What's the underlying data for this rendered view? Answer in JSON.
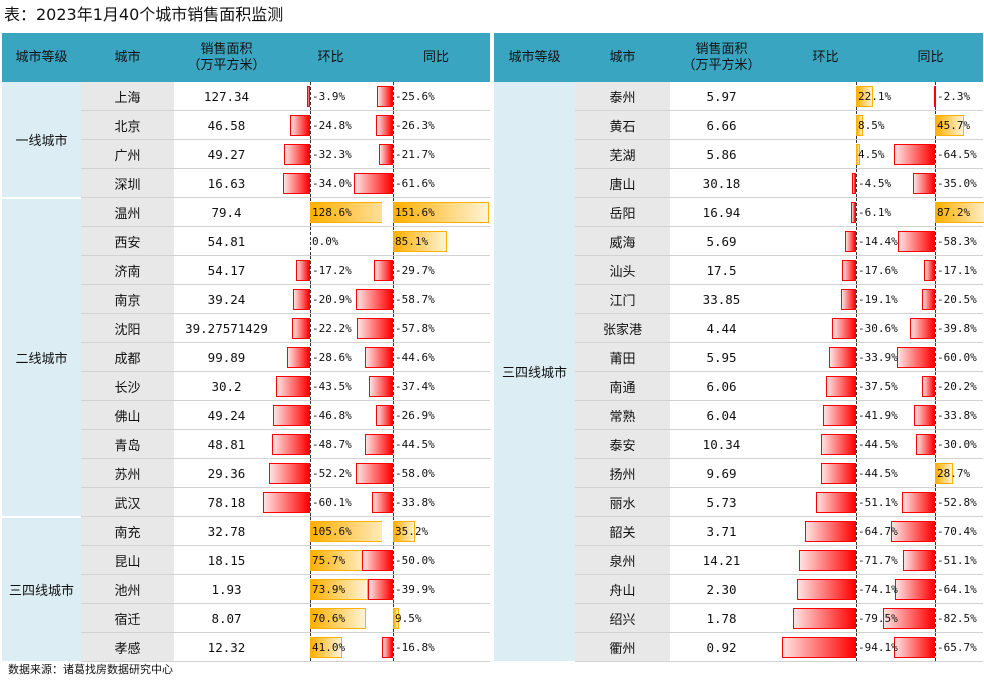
{
  "title": "表：2023年1月40个城市销售面积监测",
  "source": "数据来源：诸葛找房数据研究中心",
  "headers": {
    "tier": "城市等级",
    "city": "城市",
    "area": "销售面积\n（万平方米）",
    "mom": "环比",
    "yoy": "同比"
  },
  "tiers": {
    "t1": "一线城市",
    "t2": "二线城市",
    "t34": "三四线城市"
  },
  "colors": {
    "header": "#3aa5c0",
    "tier_cell": "#dcedf3",
    "city_cell": "#e8e8e8",
    "negative": "#ff0000",
    "positive": "#ffb000"
  },
  "chart_data": {
    "type": "table",
    "columns": [
      "城市等级",
      "城市",
      "销售面积（万平方米）",
      "环比",
      "同比"
    ],
    "left_table": [
      {
        "tier": "一线城市",
        "city": "上海",
        "area": "127.34",
        "mom": "-3.9%",
        "yoy": "-25.6%"
      },
      {
        "tier": "一线城市",
        "city": "北京",
        "area": "46.58",
        "mom": "-24.8%",
        "yoy": "-26.3%"
      },
      {
        "tier": "一线城市",
        "city": "广州",
        "area": "49.27",
        "mom": "-32.3%",
        "yoy": "-21.7%"
      },
      {
        "tier": "一线城市",
        "city": "深圳",
        "area": "16.63",
        "mom": "-34.0%",
        "yoy": "-61.6%"
      },
      {
        "tier": "二线城市",
        "city": "温州",
        "area": "79.4",
        "mom": "128.6%",
        "yoy": "151.6%"
      },
      {
        "tier": "二线城市",
        "city": "西安",
        "area": "54.81",
        "mom": "0.0%",
        "yoy": "85.1%"
      },
      {
        "tier": "二线城市",
        "city": "济南",
        "area": "54.17",
        "mom": "-17.2%",
        "yoy": "-29.7%"
      },
      {
        "tier": "二线城市",
        "city": "南京",
        "area": "39.24",
        "mom": "-20.9%",
        "yoy": "-58.7%"
      },
      {
        "tier": "二线城市",
        "city": "沈阳",
        "area": "39.27571429",
        "mom": "-22.2%",
        "yoy": "-57.8%"
      },
      {
        "tier": "二线城市",
        "city": "成都",
        "area": "99.89",
        "mom": "-28.6%",
        "yoy": "-44.6%"
      },
      {
        "tier": "二线城市",
        "city": "长沙",
        "area": "30.2",
        "mom": "-43.5%",
        "yoy": "-37.4%"
      },
      {
        "tier": "二线城市",
        "city": "佛山",
        "area": "49.24",
        "mom": "-46.8%",
        "yoy": "-26.9%"
      },
      {
        "tier": "二线城市",
        "city": "青岛",
        "area": "48.81",
        "mom": "-48.7%",
        "yoy": "-44.5%"
      },
      {
        "tier": "二线城市",
        "city": "苏州",
        "area": "29.36",
        "mom": "-52.2%",
        "yoy": "-58.0%"
      },
      {
        "tier": "二线城市",
        "city": "武汉",
        "area": "78.18",
        "mom": "-60.1%",
        "yoy": "-33.8%"
      },
      {
        "tier": "三四线城市",
        "city": "南充",
        "area": "32.78",
        "mom": "105.6%",
        "yoy": "35.2%"
      },
      {
        "tier": "三四线城市",
        "city": "昆山",
        "area": "18.15",
        "mom": "75.7%",
        "yoy": "-50.0%"
      },
      {
        "tier": "三四线城市",
        "city": "池州",
        "area": "1.93",
        "mom": "73.9%",
        "yoy": "-39.9%"
      },
      {
        "tier": "三四线城市",
        "city": "宿迁",
        "area": "8.07",
        "mom": "70.6%",
        "yoy": "9.5%"
      },
      {
        "tier": "三四线城市",
        "city": "孝感",
        "area": "12.32",
        "mom": "41.0%",
        "yoy": "-16.8%"
      }
    ],
    "right_table": [
      {
        "tier": "三四线城市",
        "city": "泰州",
        "area": "5.97",
        "mom": "22.1%",
        "yoy": "-2.3%"
      },
      {
        "tier": "三四线城市",
        "city": "黄石",
        "area": "6.66",
        "mom": "8.5%",
        "yoy": "45.7%"
      },
      {
        "tier": "三四线城市",
        "city": "芜湖",
        "area": "5.86",
        "mom": "4.5%",
        "yoy": "-64.5%"
      },
      {
        "tier": "三四线城市",
        "city": "唐山",
        "area": "30.18",
        "mom": "-4.5%",
        "yoy": "-35.0%"
      },
      {
        "tier": "三四线城市",
        "city": "岳阳",
        "area": "16.94",
        "mom": "-6.1%",
        "yoy": "87.2%"
      },
      {
        "tier": "三四线城市",
        "city": "威海",
        "area": "5.69",
        "mom": "-14.4%",
        "yoy": "-58.3%"
      },
      {
        "tier": "三四线城市",
        "city": "汕头",
        "area": "17.5",
        "mom": "-17.6%",
        "yoy": "-17.1%"
      },
      {
        "tier": "三四线城市",
        "city": "江门",
        "area": "33.85",
        "mom": "-19.1%",
        "yoy": "-20.5%"
      },
      {
        "tier": "三四线城市",
        "city": "张家港",
        "area": "4.44",
        "mom": "-30.6%",
        "yoy": "-39.8%"
      },
      {
        "tier": "三四线城市",
        "city": "莆田",
        "area": "5.95",
        "mom": "-33.9%",
        "yoy": "-60.0%"
      },
      {
        "tier": "三四线城市",
        "city": "南通",
        "area": "6.06",
        "mom": "-37.5%",
        "yoy": "-20.2%"
      },
      {
        "tier": "三四线城市",
        "city": "常熟",
        "area": "6.04",
        "mom": "-41.9%",
        "yoy": "-33.8%"
      },
      {
        "tier": "三四线城市",
        "city": "泰安",
        "area": "10.34",
        "mom": "-44.5%",
        "yoy": "-30.0%"
      },
      {
        "tier": "三四线城市",
        "city": "扬州",
        "area": "9.69",
        "mom": "-44.5%",
        "yoy": "28.7%"
      },
      {
        "tier": "三四线城市",
        "city": "丽水",
        "area": "5.73",
        "mom": "-51.1%",
        "yoy": "-52.8%"
      },
      {
        "tier": "三四线城市",
        "city": "韶关",
        "area": "3.71",
        "mom": "-64.7%",
        "yoy": "-70.4%"
      },
      {
        "tier": "三四线城市",
        "city": "泉州",
        "area": "14.21",
        "mom": "-71.7%",
        "yoy": "-51.1%"
      },
      {
        "tier": "三四线城市",
        "city": "舟山",
        "area": "2.30",
        "mom": "-74.1%",
        "yoy": "-64.1%"
      },
      {
        "tier": "三四线城市",
        "city": "绍兴",
        "area": "1.78",
        "mom": "-79.5%",
        "yoy": "-82.5%"
      },
      {
        "tier": "三四线城市",
        "city": "衢州",
        "area": "0.92",
        "mom": "-94.1%",
        "yoy": "-65.7%"
      }
    ]
  }
}
